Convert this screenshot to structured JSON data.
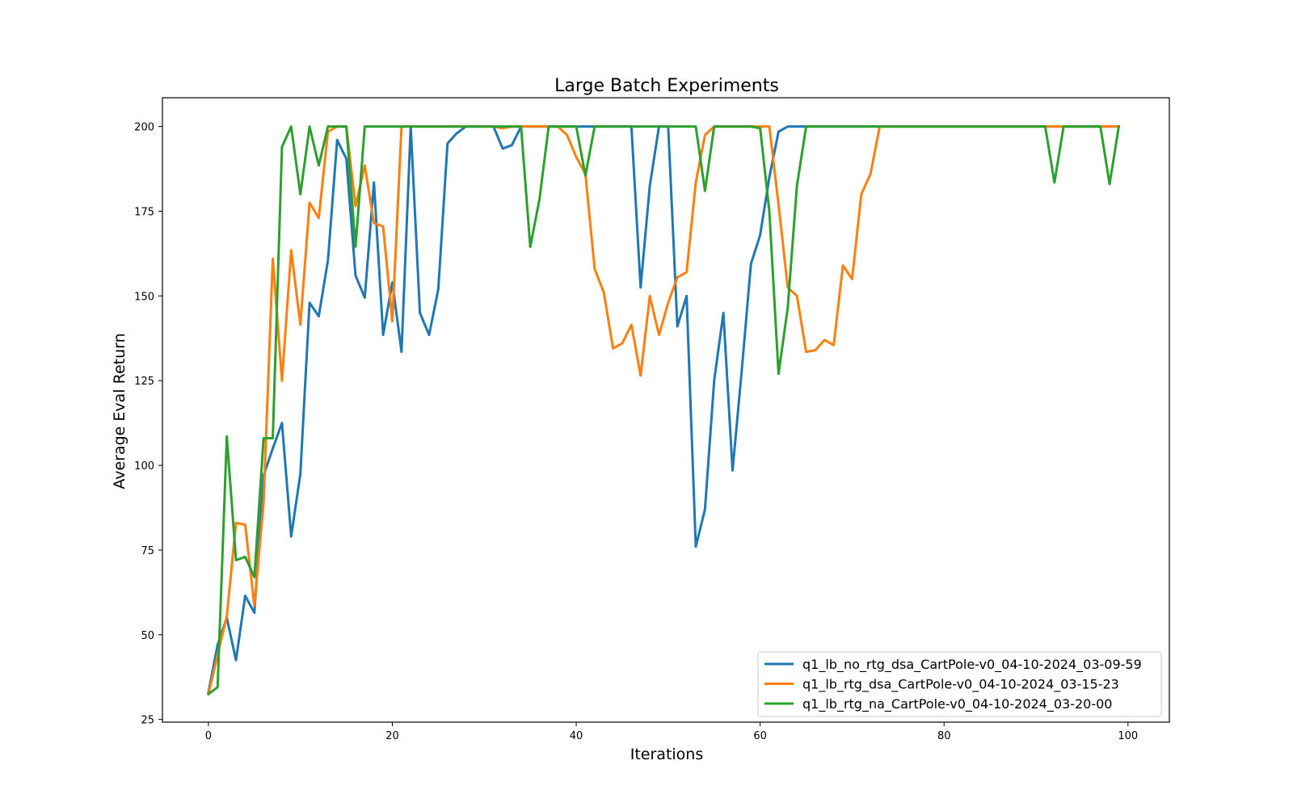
{
  "chart_data": {
    "type": "line",
    "title": "Large Batch Experiments",
    "xlabel": "Iterations",
    "ylabel": "Average Eval Return",
    "xlim": [
      -5,
      104.5
    ],
    "ylim": [
      24.2,
      208.5
    ],
    "xticks": [
      0,
      20,
      40,
      60,
      80,
      100
    ],
    "yticks": [
      25,
      50,
      75,
      100,
      125,
      150,
      175,
      200
    ],
    "grid": false,
    "legend_position": "lower-right",
    "x": [
      0,
      1,
      2,
      3,
      4,
      5,
      6,
      7,
      8,
      9,
      10,
      11,
      12,
      13,
      14,
      15,
      16,
      17,
      18,
      19,
      20,
      21,
      22,
      23,
      24,
      25,
      26,
      27,
      28,
      29,
      30,
      31,
      32,
      33,
      34,
      35,
      36,
      37,
      38,
      39,
      40,
      41,
      42,
      43,
      44,
      45,
      46,
      47,
      48,
      49,
      50,
      51,
      52,
      53,
      54,
      55,
      56,
      57,
      58,
      59,
      60,
      61,
      62,
      63,
      64,
      65,
      66,
      67,
      68,
      69,
      70,
      71,
      72,
      73,
      74,
      75,
      76,
      77,
      78,
      79,
      80,
      81,
      82,
      83,
      84,
      85,
      86,
      87,
      88,
      89,
      90,
      91,
      92,
      93,
      94,
      95,
      96,
      97,
      98,
      99
    ],
    "series": [
      {
        "name": "q1_lb_no_rtg_dsa_CartPole-v0_04-10-2024_03-09-59",
        "color": "#1f77b4",
        "values": [
          33,
          47,
          55,
          42.5,
          61.5,
          56.5,
          97,
          105,
          112.5,
          79,
          97.5,
          148,
          144,
          160.5,
          196,
          190.5,
          156,
          149.5,
          183.5,
          138.5,
          154,
          133.5,
          200,
          145,
          138.5,
          152,
          195,
          198,
          200,
          200,
          200,
          200,
          193.5,
          194.5,
          200,
          200,
          200,
          200,
          200,
          200,
          200,
          200,
          200,
          200,
          200,
          200,
          200,
          152.5,
          182.5,
          200,
          200,
          141,
          150,
          76,
          87,
          125,
          145,
          98.5,
          128,
          159.5,
          168,
          185,
          198.5,
          200,
          200,
          200,
          200,
          200,
          200,
          200,
          200,
          200,
          200,
          200,
          200,
          200,
          200,
          200,
          200,
          200,
          200,
          200,
          200,
          200,
          200,
          200,
          200,
          200,
          200,
          200,
          200,
          200,
          200,
          200,
          200,
          200,
          200,
          200,
          200,
          200
        ]
      },
      {
        "name": "q1_lb_rtg_dsa_CartPole-v0_04-10-2024_03-15-23",
        "color": "#ff7f0e",
        "values": [
          32.5,
          44,
          55.5,
          83,
          82.5,
          58.5,
          89,
          161,
          125,
          163.5,
          141.5,
          177.5,
          173,
          198.5,
          200,
          200,
          176.5,
          188.5,
          171.5,
          170.5,
          142.5,
          200,
          200,
          200,
          200,
          200,
          200,
          200,
          200,
          200,
          200,
          200,
          199.5,
          200,
          200,
          200,
          200,
          200,
          200,
          197.5,
          191,
          186,
          158,
          151,
          134.5,
          136,
          141.5,
          126.5,
          150,
          138.5,
          148,
          155.5,
          157,
          183.5,
          197.5,
          200,
          200,
          200,
          200,
          200,
          200,
          200,
          177,
          152.5,
          150,
          133.5,
          134,
          137,
          135.5,
          159,
          155,
          180,
          186,
          200,
          200,
          200,
          200,
          200,
          200,
          200,
          200,
          200,
          200,
          200,
          200,
          200,
          200,
          200,
          200,
          200,
          200,
          200,
          200,
          200,
          200,
          200,
          200,
          200,
          200,
          200
        ]
      },
      {
        "name": "q1_lb_rtg_na_CartPole-v0_04-10-2024_03-20-00",
        "color": "#2ca02c",
        "values": [
          32.5,
          34.5,
          108.5,
          72,
          73,
          67,
          108,
          108,
          194,
          200,
          180,
          200,
          188.5,
          200,
          200,
          200,
          164.5,
          200,
          200,
          200,
          200,
          200,
          200,
          200,
          200,
          200,
          200,
          200,
          200,
          200,
          200,
          200,
          200,
          200,
          200,
          164.5,
          178.5,
          200,
          200,
          200,
          200,
          185.5,
          200,
          200,
          200,
          200,
          200,
          200,
          200,
          200,
          200,
          200,
          200,
          200,
          181,
          200,
          200,
          200,
          200,
          200,
          199.5,
          175,
          127,
          146.5,
          182.5,
          200,
          200,
          200,
          200,
          200,
          200,
          200,
          200,
          200,
          200,
          200,
          200,
          200,
          200,
          200,
          200,
          200,
          200,
          200,
          200,
          200,
          200,
          200,
          200,
          200,
          200,
          200,
          183.5,
          200,
          200,
          200,
          200,
          200,
          183,
          200
        ]
      }
    ]
  }
}
